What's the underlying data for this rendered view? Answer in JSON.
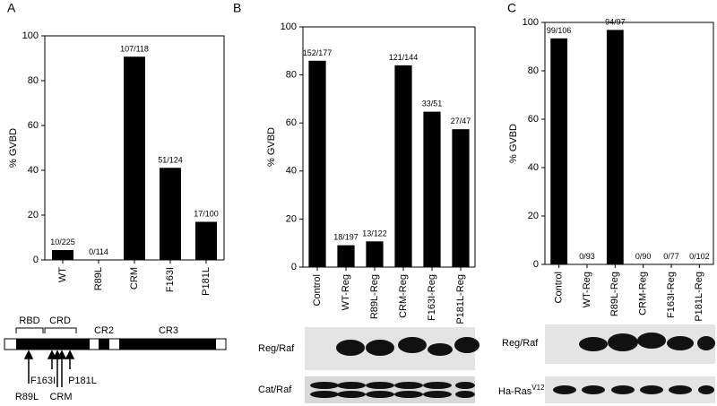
{
  "chart_data": [
    {
      "type": "bar",
      "panel": "A",
      "ylabel": "% GVBD",
      "categories": [
        "WT",
        "R89L",
        "CRM",
        "F163I",
        "P181L"
      ],
      "values": [
        4.4,
        0,
        90.7,
        41.1,
        17
      ],
      "value_labels": [
        "10/225",
        "0/114",
        "107/118",
        "51/124",
        "17/100"
      ],
      "color": "#000000",
      "ylim": [
        0,
        100
      ],
      "yticks": [
        0,
        20,
        40,
        60,
        80,
        100
      ]
    },
    {
      "type": "bar",
      "panel": "B",
      "ylabel": "% GVBD",
      "categories": [
        "Control",
        "WT-Reg",
        "R89L-Reg",
        "CRM-Reg",
        "F163I-Reg",
        "P181L-Reg"
      ],
      "values": [
        85.9,
        9.1,
        10.7,
        84.0,
        64.7,
        57.4
      ],
      "value_labels": [
        "152/177",
        "18/197",
        "13/122",
        "121/144",
        "33/51",
        "27/47"
      ],
      "color": "#000000",
      "ylim": [
        0,
        100
      ],
      "yticks": [
        0,
        20,
        40,
        60,
        80,
        100
      ]
    },
    {
      "type": "bar",
      "panel": "C",
      "ylabel": "% GVBD",
      "categories": [
        "Control",
        "WT-Reg",
        "R89L-Reg",
        "CRM-Reg",
        "F163I-Reg",
        "P181L-Reg"
      ],
      "values": [
        93.4,
        0,
        96.9,
        0,
        0,
        0
      ],
      "value_labels": [
        "99/106",
        "0/93",
        "94/97",
        "0/90",
        "0/77",
        "0/102"
      ],
      "color": "#000000",
      "ylim": [
        0,
        100
      ],
      "yticks": [
        0,
        20,
        40,
        60,
        80,
        100
      ]
    }
  ],
  "diagram": {
    "domains": [
      "RBD",
      "CRD",
      "CR2",
      "CR3"
    ],
    "mutations": [
      "R89L",
      "F163I",
      "CRM",
      "P181L"
    ]
  },
  "blots": {
    "b_top": "Reg/Raf",
    "b_bottom": "Cat/Raf",
    "c_top": "Reg/Raf",
    "c_bottom": "Ha-Ras",
    "c_bottom_sup": "V12"
  }
}
